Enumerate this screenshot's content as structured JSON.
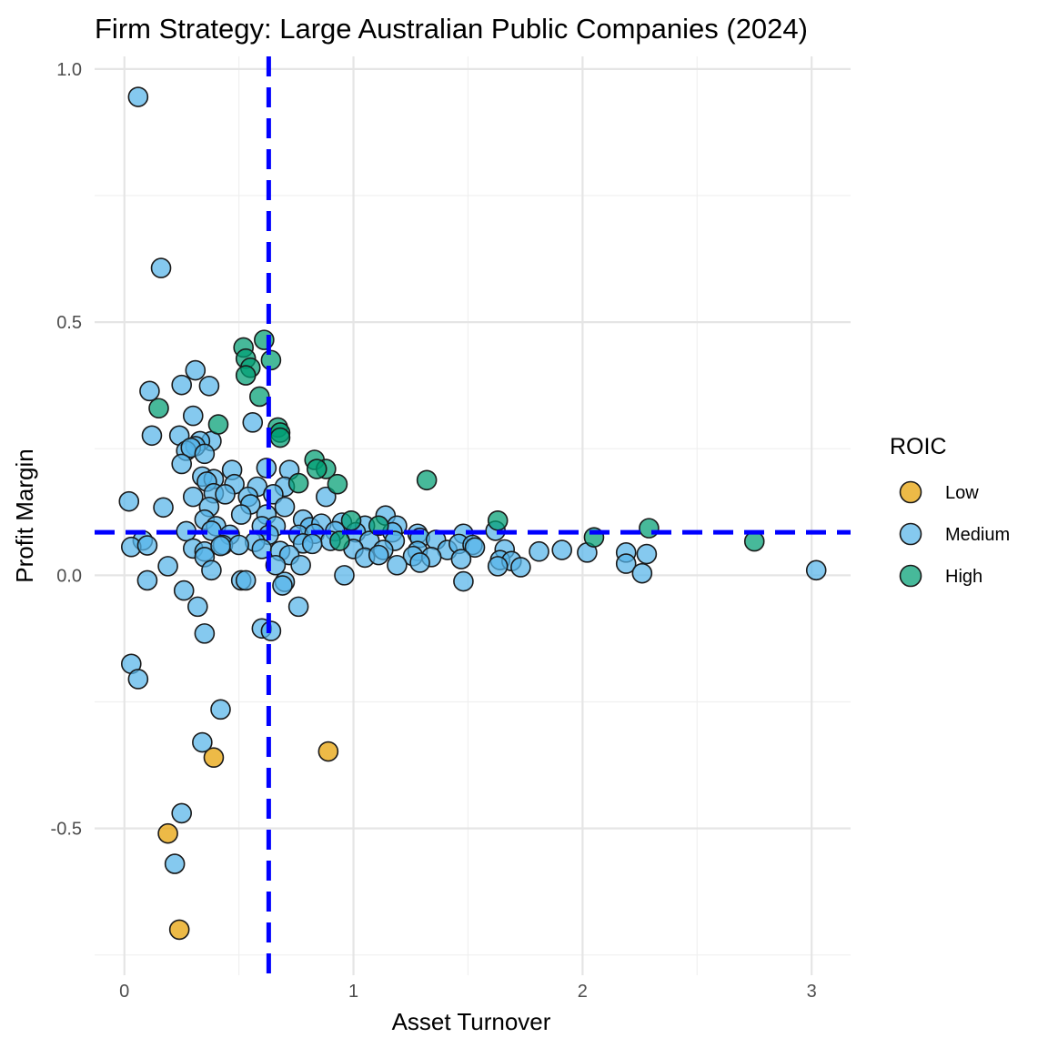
{
  "chart_data": {
    "type": "scatter",
    "title": "Firm Strategy: Large Australian Public Companies (2024)",
    "xlabel": "Asset Turnover",
    "ylabel": "Profit Margin",
    "xlim": [
      -0.13,
      3.17
    ],
    "ylim": [
      -0.79,
      1.025
    ],
    "x_ticks": [
      0,
      1,
      2,
      3
    ],
    "x_tick_labels": [
      "0",
      "1",
      "2",
      "3"
    ],
    "y_ticks": [
      -0.5,
      0.0,
      0.5,
      1.0
    ],
    "y_tick_labels": [
      "-0.5",
      "0.0",
      "0.5",
      "1.0"
    ],
    "grid": true,
    "reference_lines": {
      "vertical_x": 0.63,
      "horizontal_y": 0.085,
      "color": "#0000ff",
      "style": "dashed"
    },
    "legend": {
      "title": "ROIC",
      "position": "right",
      "entries": [
        {
          "name": "Low",
          "color": "#E69F00"
        },
        {
          "name": "Medium",
          "color": "#56B4E9"
        },
        {
          "name": "High",
          "color": "#009E73"
        }
      ]
    },
    "series": [
      {
        "name": "Low",
        "color": "#E69F00",
        "points": [
          [
            0.39,
            -0.36
          ],
          [
            0.89,
            -0.348
          ],
          [
            0.19,
            -0.51
          ],
          [
            0.24,
            -0.7
          ]
        ]
      },
      {
        "name": "Medium",
        "color": "#56B4E9",
        "points": [
          [
            0.06,
            0.945
          ],
          [
            0.16,
            0.607
          ],
          [
            0.31,
            0.405
          ],
          [
            0.37,
            0.374
          ],
          [
            0.25,
            0.376
          ],
          [
            0.11,
            0.364
          ],
          [
            0.3,
            0.315
          ],
          [
            0.56,
            0.302
          ],
          [
            0.12,
            0.276
          ],
          [
            0.24,
            0.276
          ],
          [
            0.38,
            0.265
          ],
          [
            0.33,
            0.265
          ],
          [
            0.31,
            0.255
          ],
          [
            0.27,
            0.246
          ],
          [
            0.29,
            0.252
          ],
          [
            0.35,
            0.24
          ],
          [
            0.25,
            0.22
          ],
          [
            0.47,
            0.208
          ],
          [
            0.62,
            0.212
          ],
          [
            0.72,
            0.208
          ],
          [
            0.34,
            0.195
          ],
          [
            0.39,
            0.19
          ],
          [
            0.36,
            0.185
          ],
          [
            0.48,
            0.18
          ],
          [
            0.58,
            0.175
          ],
          [
            0.7,
            0.175
          ],
          [
            0.39,
            0.162
          ],
          [
            0.3,
            0.155
          ],
          [
            0.54,
            0.155
          ],
          [
            0.44,
            0.16
          ],
          [
            0.65,
            0.16
          ],
          [
            0.88,
            0.155
          ],
          [
            0.02,
            0.146
          ],
          [
            0.17,
            0.134
          ],
          [
            0.37,
            0.135
          ],
          [
            0.55,
            0.14
          ],
          [
            0.7,
            0.135
          ],
          [
            0.51,
            0.12
          ],
          [
            0.62,
            0.12
          ],
          [
            0.35,
            0.11
          ],
          [
            0.78,
            0.11
          ],
          [
            1.14,
            0.118
          ],
          [
            0.4,
            0.097
          ],
          [
            0.6,
            0.097
          ],
          [
            0.66,
            0.097
          ],
          [
            0.81,
            0.095
          ],
          [
            0.86,
            0.102
          ],
          [
            0.95,
            0.104
          ],
          [
            1.05,
            0.098
          ],
          [
            1.19,
            0.098
          ],
          [
            0.27,
            0.087
          ],
          [
            0.38,
            0.088
          ],
          [
            0.46,
            0.08
          ],
          [
            0.63,
            0.08
          ],
          [
            0.76,
            0.08
          ],
          [
            0.83,
            0.082
          ],
          [
            0.92,
            0.087
          ],
          [
            1.01,
            0.085
          ],
          [
            1.17,
            0.085
          ],
          [
            1.28,
            0.082
          ],
          [
            1.48,
            0.082
          ],
          [
            1.29,
            0.074
          ],
          [
            1.36,
            0.07
          ],
          [
            1.62,
            0.088
          ],
          [
            0.08,
            0.069
          ],
          [
            0.57,
            0.066
          ],
          [
            0.9,
            0.068
          ],
          [
            1.07,
            0.068
          ],
          [
            1.18,
            0.068
          ],
          [
            0.43,
            0.06
          ],
          [
            0.5,
            0.06
          ],
          [
            0.78,
            0.063
          ],
          [
            0.82,
            0.062
          ],
          [
            0.3,
            0.053
          ],
          [
            0.35,
            0.047
          ],
          [
            0.35,
            0.036
          ],
          [
            0.42,
            0.058
          ],
          [
            0.6,
            0.052
          ],
          [
            0.68,
            0.048
          ],
          [
            0.03,
            0.056
          ],
          [
            0.1,
            0.059
          ],
          [
            1.0,
            0.052
          ],
          [
            1.13,
            0.05
          ],
          [
            1.28,
            0.048
          ],
          [
            1.41,
            0.05
          ],
          [
            1.46,
            0.062
          ],
          [
            1.52,
            0.06
          ],
          [
            1.53,
            0.055
          ],
          [
            1.66,
            0.051
          ],
          [
            1.81,
            0.047
          ],
          [
            1.91,
            0.05
          ],
          [
            2.02,
            0.045
          ],
          [
            2.19,
            0.045
          ],
          [
            2.28,
            0.042
          ],
          [
            1.05,
            0.035
          ],
          [
            1.11,
            0.04
          ],
          [
            1.26,
            0.038
          ],
          [
            1.34,
            0.036
          ],
          [
            1.47,
            0.032
          ],
          [
            1.64,
            0.03
          ],
          [
            1.69,
            0.028
          ],
          [
            0.72,
            0.04
          ],
          [
            1.29,
            0.025
          ],
          [
            1.63,
            0.018
          ],
          [
            1.73,
            0.016
          ],
          [
            1.19,
            0.02
          ],
          [
            2.19,
            0.023
          ],
          [
            2.26,
            0.004
          ],
          [
            3.02,
            0.01
          ],
          [
            0.19,
            0.018
          ],
          [
            0.38,
            0.01
          ],
          [
            0.66,
            0.02
          ],
          [
            0.77,
            0.02
          ],
          [
            0.96,
            0.0
          ],
          [
            0.1,
            -0.01
          ],
          [
            0.51,
            -0.01
          ],
          [
            0.53,
            -0.01
          ],
          [
            0.7,
            -0.013
          ],
          [
            0.69,
            -0.02
          ],
          [
            1.48,
            -0.012
          ],
          [
            0.26,
            -0.03
          ],
          [
            0.32,
            -0.062
          ],
          [
            0.76,
            -0.062
          ],
          [
            0.6,
            -0.105
          ],
          [
            0.64,
            -0.11
          ],
          [
            0.35,
            -0.115
          ],
          [
            0.03,
            -0.175
          ],
          [
            0.06,
            -0.205
          ],
          [
            0.42,
            -0.265
          ],
          [
            0.34,
            -0.33
          ],
          [
            0.25,
            -0.47
          ],
          [
            0.22,
            -0.57
          ]
        ]
      },
      {
        "name": "High",
        "color": "#009E73",
        "points": [
          [
            0.61,
            0.465
          ],
          [
            0.52,
            0.45
          ],
          [
            0.53,
            0.428
          ],
          [
            0.64,
            0.425
          ],
          [
            0.55,
            0.41
          ],
          [
            0.53,
            0.395
          ],
          [
            0.59,
            0.353
          ],
          [
            0.15,
            0.33
          ],
          [
            0.41,
            0.298
          ],
          [
            0.67,
            0.292
          ],
          [
            0.68,
            0.282
          ],
          [
            0.68,
            0.272
          ],
          [
            0.83,
            0.228
          ],
          [
            0.88,
            0.21
          ],
          [
            0.84,
            0.21
          ],
          [
            0.93,
            0.18
          ],
          [
            0.76,
            0.182
          ],
          [
            1.32,
            0.188
          ],
          [
            0.99,
            0.108
          ],
          [
            1.63,
            0.108
          ],
          [
            1.11,
            0.098
          ],
          [
            2.29,
            0.093
          ],
          [
            2.05,
            0.075
          ],
          [
            0.94,
            0.068
          ],
          [
            2.75,
            0.067
          ]
        ]
      }
    ]
  }
}
